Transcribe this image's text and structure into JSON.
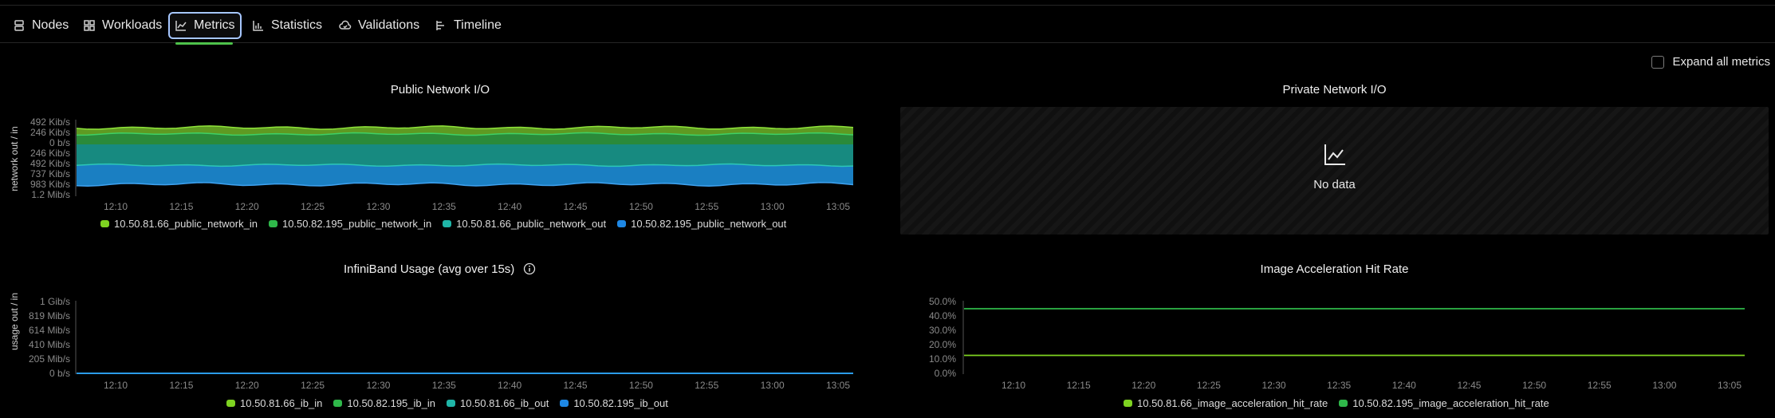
{
  "tabs": [
    {
      "label": "Nodes",
      "icon": "nodes-icon",
      "active": false
    },
    {
      "label": "Workloads",
      "icon": "workloads-icon",
      "active": false
    },
    {
      "label": "Metrics",
      "icon": "metrics-icon",
      "active": true
    },
    {
      "label": "Statistics",
      "icon": "statistics-icon",
      "active": false
    },
    {
      "label": "Validations",
      "icon": "validations-icon",
      "active": false
    },
    {
      "label": "Timeline",
      "icon": "timeline-icon",
      "active": false
    }
  ],
  "expand_label": "Expand all metrics",
  "colors": {
    "lime": "#7ed321",
    "green": "#2fb84a",
    "teal": "#1fb6a8",
    "blue": "#1e88e5"
  },
  "x_ticks": [
    "12:10",
    "12:15",
    "12:20",
    "12:25",
    "12:30",
    "12:35",
    "12:40",
    "12:45",
    "12:50",
    "12:55",
    "13:00",
    "13:05"
  ],
  "panels": {
    "public": {
      "title": "Public Network I/O",
      "ylabel": "network out / in",
      "y_ticks": [
        "492 Kib/s",
        "246 Kib/s",
        "0 b/s",
        "246 Kib/s",
        "492 Kib/s",
        "737 Kib/s",
        "983 Kib/s",
        "1.2 Mib/s"
      ],
      "legend": [
        "10.50.81.66_public_network_in",
        "10.50.82.195_public_network_in",
        "10.50.81.66_public_network_out",
        "10.50.82.195_public_network_out"
      ]
    },
    "private": {
      "title": "Private Network I/O",
      "no_data": "No data"
    },
    "infiniband": {
      "title": "InfiniBand Usage (avg over 15s)",
      "ylabel": "usage out / in",
      "y_ticks": [
        "1 Gib/s",
        "819 Mib/s",
        "614 Mib/s",
        "410 Mib/s",
        "205 Mib/s",
        "0 b/s"
      ],
      "legend": [
        "10.50.81.66_ib_in",
        "10.50.82.195_ib_in",
        "10.50.81.66_ib_out",
        "10.50.82.195_ib_out"
      ]
    },
    "image": {
      "title": "Image Acceleration Hit Rate",
      "y_ticks": [
        "50.0%",
        "40.0%",
        "30.0%",
        "20.0%",
        "10.0%",
        "0.0%"
      ],
      "legend": [
        "10.50.81.66_image_acceleration_hit_rate",
        "10.50.82.195_image_acceleration_hit_rate"
      ]
    }
  },
  "chart_data": [
    {
      "type": "area",
      "title": "Public Network I/O",
      "ylabel": "network out / in",
      "x": [
        "12:10",
        "12:15",
        "12:20",
        "12:25",
        "12:30",
        "12:35",
        "12:40",
        "12:45",
        "12:50",
        "12:55",
        "13:00",
        "13:05"
      ],
      "series": [
        {
          "name": "10.50.81.66_public_network_in",
          "values": [
            300,
            320,
            310,
            330,
            305,
            315,
            325,
            310,
            320,
            300,
            330,
            340
          ]
        },
        {
          "name": "10.50.82.195_public_network_in",
          "values": [
            180,
            190,
            185,
            195,
            180,
            190,
            185,
            190,
            180,
            185,
            190,
            195
          ]
        },
        {
          "name": "10.50.81.66_public_network_out",
          "values": [
            -400,
            -410,
            -405,
            -400,
            -410,
            -405,
            -400,
            -410,
            -405,
            -400,
            -410,
            -405
          ]
        },
        {
          "name": "10.50.82.195_public_network_out",
          "values": [
            -500,
            -510,
            -520,
            -505,
            -515,
            -510,
            -505,
            -515,
            -510,
            -505,
            -510,
            -515
          ]
        }
      ]
    },
    {
      "type": "line",
      "title": "InfiniBand Usage (avg over 15s)",
      "ylabel": "usage out / in",
      "ylim": [
        0,
        1
      ],
      "x": [
        "12:10",
        "12:15",
        "12:20",
        "12:25",
        "12:30",
        "12:35",
        "12:40",
        "12:45",
        "12:50",
        "12:55",
        "13:00",
        "13:05"
      ],
      "series": [
        {
          "name": "10.50.82.195_ib_out",
          "values": [
            0,
            0,
            0,
            0,
            0,
            0,
            0,
            0,
            0,
            0,
            0,
            0
          ]
        }
      ]
    },
    {
      "type": "line",
      "title": "Image Acceleration Hit Rate",
      "ylim": [
        0,
        50
      ],
      "x": [
        "12:10",
        "12:15",
        "12:20",
        "12:25",
        "12:30",
        "12:35",
        "12:40",
        "12:45",
        "12:50",
        "12:55",
        "13:00",
        "13:05"
      ],
      "series": [
        {
          "name": "10.50.81.66_image_acceleration_hit_rate",
          "values": [
            12.5,
            12.5,
            12.5,
            12.5,
            12.5,
            12.5,
            12.5,
            12.5,
            12.5,
            12.5,
            12.5,
            12.5
          ]
        },
        {
          "name": "10.50.82.195_image_acceleration_hit_rate",
          "values": [
            45,
            45,
            45,
            45,
            45,
            45,
            45,
            45,
            45,
            45,
            45,
            45
          ]
        }
      ]
    }
  ]
}
